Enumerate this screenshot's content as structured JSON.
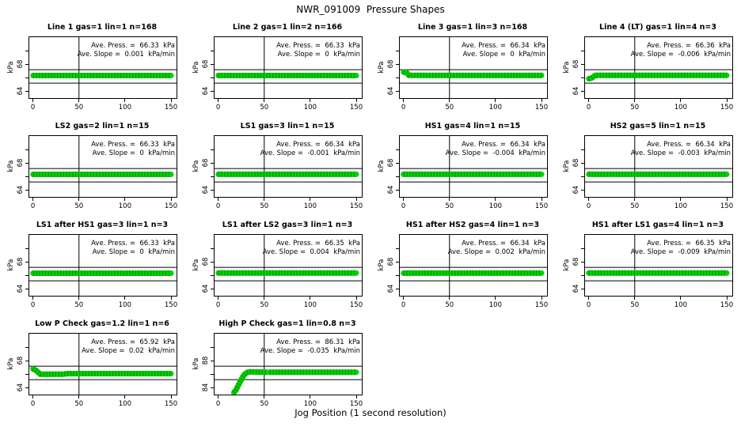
{
  "page": {
    "title": "NWR_091009  Pressure Shapes",
    "xlabel": "Jog Position (1 second resolution)",
    "ylabel": "kPa"
  },
  "colors": {
    "data_green": "#00d300",
    "data_green_dark": "#0a930a",
    "axis_black": "#000000"
  },
  "chart_data": {
    "type": "scatter",
    "grid": {
      "rows": 4,
      "cols": 4,
      "panel_count": 14
    },
    "x_ticks": [
      0,
      50,
      100,
      150
    ],
    "xlim": [
      -4,
      156
    ],
    "vline_x": 50,
    "panels": [
      {
        "name": "line-1",
        "title": "Line 1 gas=1 lin=1 n=168",
        "ave_press_kpa": 66.33,
        "ave_slope_kpa_min": 0.001,
        "press_text": "Ave. Press. =  66.33  kPa",
        "slope_text": "Ave. Slope =  0.001  kPa/min",
        "ylim": [
          63,
          72
        ],
        "yticks": [
          {
            "v": 70,
            "label": ""
          },
          {
            "v": 68,
            "label": "68"
          },
          {
            "v": 66,
            "label": ""
          },
          {
            "v": 64,
            "label": "64"
          }
        ],
        "hlines": [
          67.2,
          65.2
        ],
        "series": [
          [
            [
              0,
              66.33
            ],
            [
              150,
              66.33
            ]
          ]
        ]
      },
      {
        "name": "line-2",
        "title": "Line 2 gas=1 lin=2 n=166",
        "ave_press_kpa": 66.33,
        "ave_slope_kpa_min": 0,
        "press_text": "Ave. Press. =  66.33  kPa",
        "slope_text": "Ave. Slope =  0  kPa/min",
        "ylim": [
          63,
          72
        ],
        "yticks": [
          {
            "v": 70,
            "label": ""
          },
          {
            "v": 68,
            "label": "68"
          },
          {
            "v": 66,
            "label": ""
          },
          {
            "v": 64,
            "label": "64"
          }
        ],
        "hlines": [
          67.2,
          65.2
        ],
        "series": [
          [
            [
              0,
              66.33
            ],
            [
              150,
              66.33
            ]
          ]
        ]
      },
      {
        "name": "line-3",
        "title": "Line 3 gas=1 lin=3 n=168",
        "ave_press_kpa": 66.34,
        "ave_slope_kpa_min": 0,
        "press_text": "Ave. Press. =  66.34  kPa",
        "slope_text": "Ave. Slope =  0  kPa/min",
        "ylim": [
          63,
          72
        ],
        "yticks": [
          {
            "v": 70,
            "label": ""
          },
          {
            "v": 68,
            "label": "68"
          },
          {
            "v": 66,
            "label": ""
          },
          {
            "v": 64,
            "label": "64"
          }
        ],
        "hlines": [
          67.2,
          65.2
        ],
        "series": [
          [
            [
              0,
              66.85
            ],
            [
              3,
              66.8
            ],
            [
              6,
              66.35
            ],
            [
              150,
              66.34
            ]
          ]
        ]
      },
      {
        "name": "line-4-lt",
        "title": "Line 4 (LT) gas=1 lin=4 n=3",
        "ave_press_kpa": 66.36,
        "ave_slope_kpa_min": -0.006,
        "press_text": "Ave. Press. =  66.36  kPa",
        "slope_text": "Ave. Slope =  -0.006  kPa/min",
        "ylim": [
          63,
          72
        ],
        "yticks": [
          {
            "v": 70,
            "label": ""
          },
          {
            "v": 68,
            "label": "68"
          },
          {
            "v": 66,
            "label": ""
          },
          {
            "v": 64,
            "label": "64"
          }
        ],
        "hlines": [
          67.2,
          65.2
        ],
        "series": [
          [
            [
              0,
              65.85
            ],
            [
              3,
              65.95
            ],
            [
              7,
              66.36
            ],
            [
              150,
              66.36
            ]
          ]
        ]
      },
      {
        "name": "ls2",
        "title": "LS2 gas=2 lin=1 n=15",
        "ave_press_kpa": 66.33,
        "ave_slope_kpa_min": 0,
        "press_text": "Ave. Press. =  66.33  kPa",
        "slope_text": "Ave. Slope =  0  kPa/min",
        "ylim": [
          63,
          72
        ],
        "yticks": [
          {
            "v": 70,
            "label": ""
          },
          {
            "v": 68,
            "label": "68"
          },
          {
            "v": 66,
            "label": ""
          },
          {
            "v": 64,
            "label": "64"
          }
        ],
        "hlines": [
          67.2,
          65.2
        ],
        "series": [
          [
            [
              0,
              66.33
            ],
            [
              150,
              66.33
            ]
          ]
        ]
      },
      {
        "name": "ls1",
        "title": "LS1 gas=3 lin=1 n=15",
        "ave_press_kpa": 66.34,
        "ave_slope_kpa_min": -0.001,
        "press_text": "Ave. Press. =  66.34  kPa",
        "slope_text": "Ave. Slope =  -0.001  kPa/min",
        "ylim": [
          63,
          72
        ],
        "yticks": [
          {
            "v": 70,
            "label": ""
          },
          {
            "v": 68,
            "label": "68"
          },
          {
            "v": 66,
            "label": ""
          },
          {
            "v": 64,
            "label": "64"
          }
        ],
        "hlines": [
          67.2,
          65.2
        ],
        "series": [
          [
            [
              0,
              66.34
            ],
            [
              150,
              66.34
            ]
          ]
        ]
      },
      {
        "name": "hs1",
        "title": "HS1 gas=4 lin=1 n=15",
        "ave_press_kpa": 66.34,
        "ave_slope_kpa_min": -0.004,
        "press_text": "Ave. Press. =  66.34  kPa",
        "slope_text": "Ave. Slope =  -0.004  kPa/min",
        "ylim": [
          63,
          72
        ],
        "yticks": [
          {
            "v": 70,
            "label": ""
          },
          {
            "v": 68,
            "label": "68"
          },
          {
            "v": 66,
            "label": ""
          },
          {
            "v": 64,
            "label": "64"
          }
        ],
        "hlines": [
          67.2,
          65.2
        ],
        "series": [
          [
            [
              0,
              66.34
            ],
            [
              150,
              66.34
            ]
          ]
        ]
      },
      {
        "name": "hs2",
        "title": "HS2 gas=5 lin=1 n=15",
        "ave_press_kpa": 66.34,
        "ave_slope_kpa_min": -0.003,
        "press_text": "Ave. Press. =  66.34  kPa",
        "slope_text": "Ave. Slope =  -0.003  kPa/min",
        "ylim": [
          63,
          72
        ],
        "yticks": [
          {
            "v": 70,
            "label": ""
          },
          {
            "v": 68,
            "label": "68"
          },
          {
            "v": 66,
            "label": ""
          },
          {
            "v": 64,
            "label": "64"
          }
        ],
        "hlines": [
          67.2,
          65.2
        ],
        "series": [
          [
            [
              0,
              66.34
            ],
            [
              150,
              66.34
            ]
          ]
        ]
      },
      {
        "name": "ls1-after-hs1",
        "title": "LS1 after HS1 gas=3 lin=1 n=3",
        "ave_press_kpa": 66.33,
        "ave_slope_kpa_min": 0,
        "press_text": "Ave. Press. =  66.33  kPa",
        "slope_text": "Ave. Slope =  0  kPa/min",
        "ylim": [
          63,
          72
        ],
        "yticks": [
          {
            "v": 70,
            "label": ""
          },
          {
            "v": 68,
            "label": "68"
          },
          {
            "v": 66,
            "label": ""
          },
          {
            "v": 64,
            "label": "64"
          }
        ],
        "hlines": [
          67.2,
          65.2
        ],
        "series": [
          [
            [
              0,
              66.33
            ],
            [
              150,
              66.33
            ]
          ]
        ]
      },
      {
        "name": "ls1-after-ls2",
        "title": "LS1 after LS2 gas=3 lin=1 n=3",
        "ave_press_kpa": 66.35,
        "ave_slope_kpa_min": 0.004,
        "press_text": "Ave. Press. =  66.35  kPa",
        "slope_text": "Ave. Slope =  0.004  kPa/min",
        "ylim": [
          63,
          72
        ],
        "yticks": [
          {
            "v": 70,
            "label": ""
          },
          {
            "v": 68,
            "label": "68"
          },
          {
            "v": 66,
            "label": ""
          },
          {
            "v": 64,
            "label": "64"
          }
        ],
        "hlines": [
          67.2,
          65.2
        ],
        "series": [
          [
            [
              0,
              66.35
            ],
            [
              150,
              66.35
            ]
          ]
        ]
      },
      {
        "name": "hs1-after-hs2",
        "title": "HS1 after HS2 gas=4 lin=1 n=3",
        "ave_press_kpa": 66.34,
        "ave_slope_kpa_min": 0.002,
        "press_text": "Ave. Press. =  66.34  kPa",
        "slope_text": "Ave. Slope =  0.002  kPa/min",
        "ylim": [
          63,
          72
        ],
        "yticks": [
          {
            "v": 70,
            "label": ""
          },
          {
            "v": 68,
            "label": "68"
          },
          {
            "v": 66,
            "label": ""
          },
          {
            "v": 64,
            "label": "64"
          }
        ],
        "hlines": [
          67.2,
          65.2
        ],
        "series": [
          [
            [
              0,
              66.34
            ],
            [
              150,
              66.34
            ]
          ]
        ]
      },
      {
        "name": "hs1-after-ls1",
        "title": "HS1 after LS1 gas=4 lin=1 n=3",
        "ave_press_kpa": 66.35,
        "ave_slope_kpa_min": -0.009,
        "press_text": "Ave. Press. =  66.35  kPa",
        "slope_text": "Ave. Slope =  -0.009  kPa/min",
        "ylim": [
          63,
          72
        ],
        "yticks": [
          {
            "v": 70,
            "label": ""
          },
          {
            "v": 68,
            "label": "68"
          },
          {
            "v": 66,
            "label": ""
          },
          {
            "v": 64,
            "label": "64"
          }
        ],
        "hlines": [
          67.2,
          65.2
        ],
        "series": [
          [
            [
              0,
              66.35
            ],
            [
              150,
              66.35
            ]
          ]
        ]
      },
      {
        "name": "low-p-check",
        "title": "Low P Check gas=1.2 lin=1 n=6",
        "ave_press_kpa": 65.92,
        "ave_slope_kpa_min": 0.02,
        "press_text": "Ave. Press. =  65.92  kPa",
        "slope_text": "Ave. Slope =  0.02  kPa/min",
        "ylim": [
          63,
          72
        ],
        "yticks": [
          {
            "v": 70,
            "label": ""
          },
          {
            "v": 68,
            "label": "68"
          },
          {
            "v": 66,
            "label": ""
          },
          {
            "v": 64,
            "label": "64"
          }
        ],
        "hlines": [
          67.2,
          65.2
        ],
        "series": [
          [
            [
              0,
              66.8
            ],
            [
              3,
              66.6
            ],
            [
              8,
              66.0
            ],
            [
              32,
              66.0
            ],
            [
              38,
              66.1
            ],
            [
              150,
              66.1
            ]
          ]
        ]
      },
      {
        "name": "high-p-check",
        "title": "High P Check gas=1 lin=0.8 n=3",
        "ave_press_kpa": 86.31,
        "ave_slope_kpa_min": -0.035,
        "press_text": "Ave. Press. =  86.31  kPa",
        "slope_text": "Ave. Slope =  -0.035  kPa/min",
        "ylim": [
          83,
          92
        ],
        "yticks": [
          {
            "v": 90,
            "label": ""
          },
          {
            "v": 88,
            "label": "88"
          },
          {
            "v": 86,
            "label": ""
          },
          {
            "v": 84,
            "label": "84"
          }
        ],
        "hlines": [
          87.2,
          85.2
        ],
        "series": [
          [
            [
              17,
              83.3
            ],
            [
              19,
              83.6
            ],
            [
              22,
              84.4
            ],
            [
              25,
              85.2
            ],
            [
              28,
              85.9
            ],
            [
              31,
              86.25
            ],
            [
              34,
              86.35
            ],
            [
              53,
              86.3
            ]
          ],
          [
            [
              56,
              86.3
            ],
            [
              150,
              86.3
            ]
          ]
        ]
      }
    ]
  }
}
